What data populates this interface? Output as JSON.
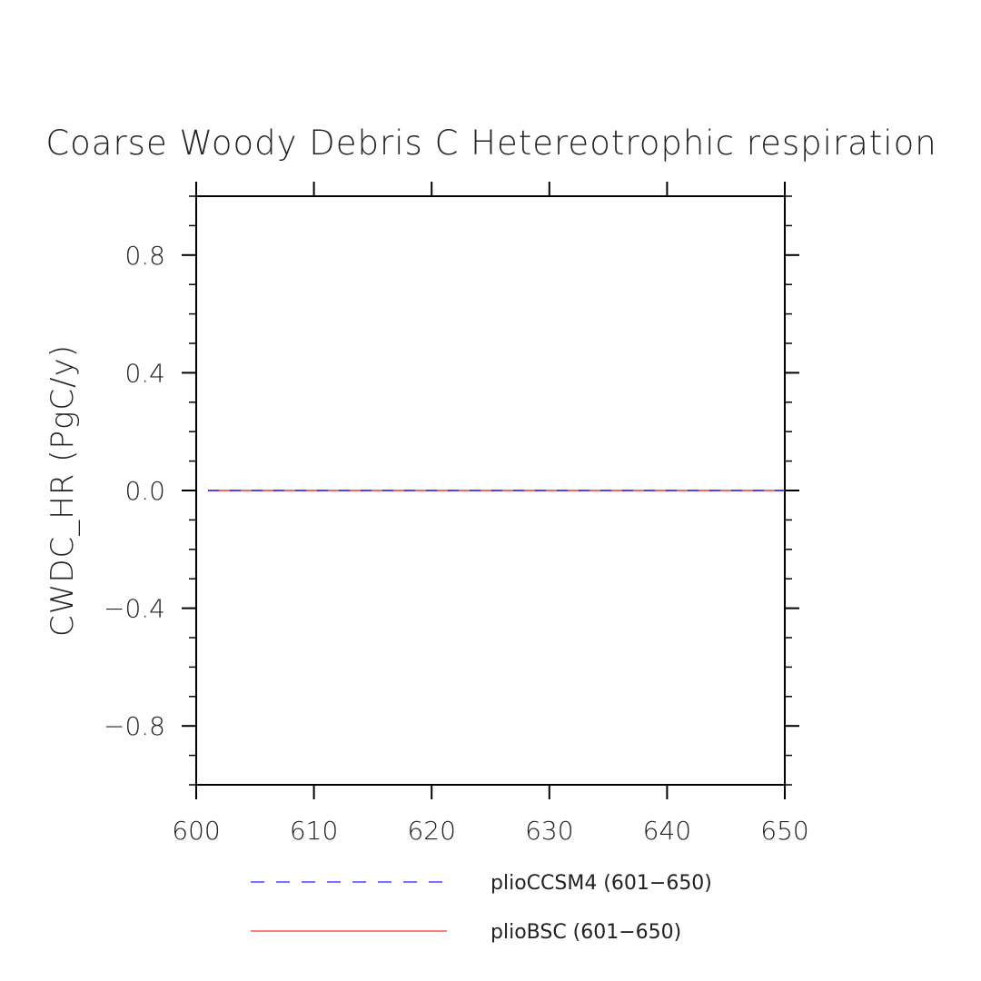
{
  "chart_data": {
    "type": "line",
    "title": "Coarse Woody Debris C Hetereotrophic respiration",
    "xlabel": "",
    "ylabel": "CWDC_HR  (PgC/y)",
    "xlim": [
      600,
      650
    ],
    "ylim": [
      -1,
      1
    ],
    "x_ticks": [
      600,
      610,
      620,
      630,
      640,
      650
    ],
    "x_tick_labels": [
      "600",
      "610",
      "620",
      "630",
      "640",
      "650"
    ],
    "y_ticks": [
      0.8,
      0.4,
      0.0,
      -0.4,
      -0.8
    ],
    "y_tick_labels": [
      "0.8",
      "0.4",
      "0.0",
      "−0.4",
      "−0.8"
    ],
    "series": [
      {
        "name": "plioBSC (601−650)",
        "color": "#ff3030",
        "dash": "solid",
        "x": [
          601,
          650
        ],
        "y": [
          0.0,
          0.0
        ]
      },
      {
        "name": "plioCCSM4 (601−650)",
        "color": "#2020ff",
        "dash": "dashed",
        "x": [
          601,
          650
        ],
        "y": [
          0.0,
          0.0
        ]
      }
    ],
    "legend": {
      "position": "bottom",
      "entries": [
        {
          "label": "plioCCSM4 (601−650)",
          "color": "#2020ff",
          "dash": "dashed"
        },
        {
          "label": "plioBSC (601−650)",
          "color": "#ff3030",
          "dash": "solid"
        }
      ]
    },
    "grid": false
  }
}
